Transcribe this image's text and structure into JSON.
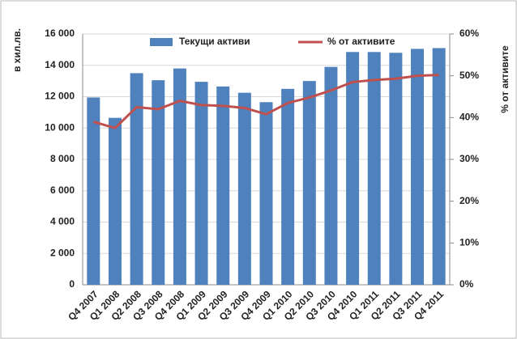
{
  "chart_data": {
    "type": "bar-line",
    "y_label": "в хил.лв.",
    "y2_label": "% от активите",
    "categories": [
      "Q4 2007",
      "Q1 2008",
      "Q2 2008",
      "Q3 2008",
      "Q4 2008",
      "Q1 2009",
      "Q2 2009",
      "Q3 2009",
      "Q4 2009",
      "Q1 2010",
      "Q2 2010",
      "Q3 2010",
      "Q4 2010",
      "Q1 2011",
      "Q2 2011",
      "Q3 2011",
      "Q4 2011"
    ],
    "series": [
      {
        "name": "Текущи активи",
        "type": "bar",
        "color": "#4f81bd",
        "values": [
          11950,
          10650,
          13500,
          13050,
          13800,
          12950,
          12650,
          12250,
          11650,
          12500,
          13000,
          13900,
          14850,
          14850,
          14800,
          15050,
          15100
        ]
      },
      {
        "name": "% от активите",
        "type": "line",
        "axis": "y2",
        "color": "#c0504d",
        "values": [
          39,
          37.5,
          42.5,
          42,
          44,
          43,
          42.8,
          42.3,
          40.8,
          43.5,
          44.8,
          46.5,
          48.5,
          49,
          49.3,
          50,
          50.2
        ]
      }
    ],
    "ylim": [
      0,
      16000
    ],
    "yticks": [
      0,
      {
        "value": 2000,
        "label": "2 000"
      },
      {
        "value": 4000,
        "label": "4 000"
      },
      {
        "value": 6000,
        "label": "6 000"
      },
      {
        "value": 8000,
        "label": "8 000"
      },
      {
        "value": 10000,
        "label": "10 000"
      },
      {
        "value": 12000,
        "label": "12 000"
      },
      {
        "value": 14000,
        "label": "14 000"
      },
      {
        "value": 16000,
        "label": "16 000"
      }
    ],
    "y2lim": [
      0,
      60
    ],
    "y2ticks": [
      {
        "value": 0,
        "label": "0%"
      },
      {
        "value": 10,
        "label": "10%"
      },
      {
        "value": 20,
        "label": "20%"
      },
      {
        "value": 30,
        "label": "30%"
      },
      {
        "value": 40,
        "label": "40%"
      },
      {
        "value": 50,
        "label": "50%"
      },
      {
        "value": 60,
        "label": "60%"
      }
    ],
    "grid": true
  }
}
